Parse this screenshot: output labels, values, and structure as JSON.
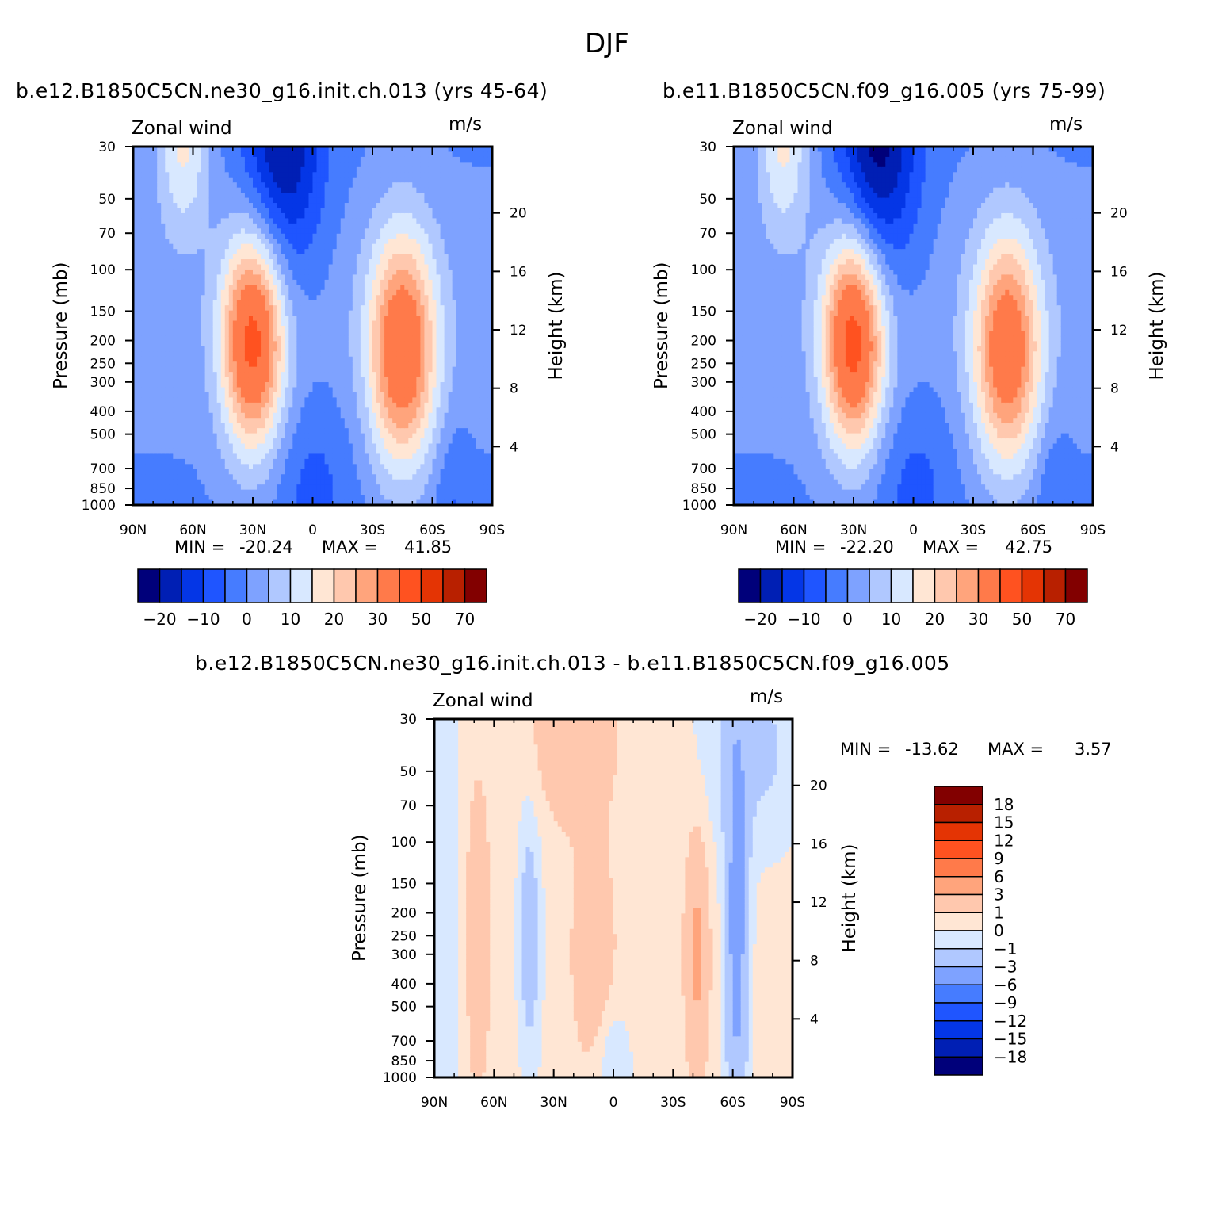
{
  "title": "DJF",
  "chart_data": [
    {
      "type": "contour",
      "id": "left",
      "title": "b.e12.B1850C5CN.ne30_g16.init.ch.013 (yrs 45-64)",
      "variable": "Zonal wind",
      "units": "m/s",
      "ylabel": "Pressure (mb)",
      "ylabel2": "Height (km)",
      "xticks": [
        "90N",
        "60N",
        "30N",
        "0",
        "30S",
        "60S",
        "90S"
      ],
      "yticks": [
        "30",
        "50",
        "70",
        "100",
        "150",
        "200",
        "250",
        "300",
        "400",
        "500",
        "700",
        "850",
        "1000"
      ],
      "y2ticks": [
        "20",
        "16",
        "12",
        "8",
        "4"
      ],
      "min_label": "MIN = ",
      "max_label": "MAX = ",
      "min": "-20.24",
      "max": "41.85",
      "colorbar_labels": [
        "−20",
        "−10",
        "0",
        "10",
        "20",
        "30",
        "50",
        "70"
      ],
      "jets": [
        {
          "lat": 30,
          "pressure": 200,
          "peak": 41.85
        },
        {
          "lat": -45,
          "pressure": 220,
          "peak": 38
        },
        {
          "lat": 15,
          "pressure": 30,
          "peak": -20.24
        }
      ]
    },
    {
      "type": "contour",
      "id": "right",
      "title": "b.e11.B1850C5CN.f09_g16.005 (yrs 75-99)",
      "variable": "Zonal wind",
      "units": "m/s",
      "ylabel": "Pressure (mb)",
      "ylabel2": "Height (km)",
      "xticks": [
        "90N",
        "60N",
        "30N",
        "0",
        "30S",
        "60S",
        "90S"
      ],
      "yticks": [
        "30",
        "50",
        "70",
        "100",
        "150",
        "200",
        "250",
        "300",
        "400",
        "500",
        "700",
        "850",
        "1000"
      ],
      "y2ticks": [
        "20",
        "16",
        "12",
        "8",
        "4"
      ],
      "min_label": "MIN = ",
      "max_label": "MAX = ",
      "min": "-22.20",
      "max": "42.75",
      "colorbar_labels": [
        "−20",
        "−10",
        "0",
        "10",
        "20",
        "30",
        "50",
        "70"
      ],
      "jets": [
        {
          "lat": 30,
          "pressure": 200,
          "peak": 42.75
        },
        {
          "lat": -47,
          "pressure": 220,
          "peak": 36
        },
        {
          "lat": 18,
          "pressure": 30,
          "peak": -22.2
        }
      ]
    },
    {
      "type": "contour",
      "id": "diff",
      "title": "b.e12.B1850C5CN.ne30_g16.init.ch.013 - b.e11.B1850C5CN.f09_g16.005",
      "variable": "Zonal wind",
      "units": "m/s",
      "ylabel": "Pressure (mb)",
      "ylabel2": "Height (km)",
      "xticks": [
        "90N",
        "60N",
        "30N",
        "0",
        "30S",
        "60S",
        "90S"
      ],
      "yticks": [
        "30",
        "50",
        "70",
        "100",
        "150",
        "200",
        "250",
        "300",
        "400",
        "500",
        "700",
        "850",
        "1000"
      ],
      "y2ticks": [
        "20",
        "16",
        "12",
        "8",
        "4"
      ],
      "min_label": "MIN = ",
      "max_label": "MAX = ",
      "min": "-13.62",
      "max": "3.57",
      "colorbar_labels": [
        "18",
        "15",
        "12",
        "9",
        "6",
        "3",
        "1",
        "0",
        "−1",
        "−3",
        "−6",
        "−9",
        "−12",
        "−15",
        "−18"
      ]
    }
  ],
  "palettes": {
    "full": [
      "#00007a",
      "#001fb4",
      "#0436e6",
      "#1f55ff",
      "#467cff",
      "#7ea2ff",
      "#b0c8ff",
      "#d8e8ff",
      "#ffe6d4",
      "#ffc8ae",
      "#ffa47c",
      "#ff7a4a",
      "#ff5220",
      "#e43404",
      "#b82000",
      "#820000"
    ],
    "diff": [
      "#00007a",
      "#001fb4",
      "#0436e6",
      "#1f55ff",
      "#467cff",
      "#7ea2ff",
      "#b0c8ff",
      "#d8e8ff",
      "#ffe6d4",
      "#ffc8ae",
      "#ffa47c",
      "#ff7a4a",
      "#ff5220",
      "#e43404",
      "#b82000",
      "#820000"
    ]
  }
}
